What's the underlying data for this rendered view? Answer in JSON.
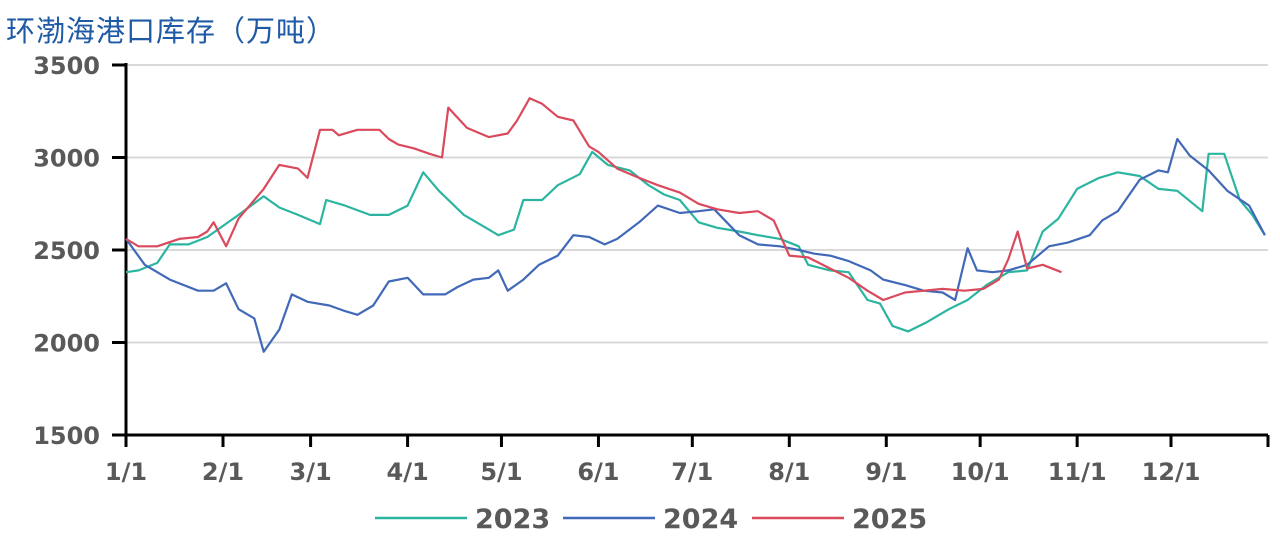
{
  "chart_data": {
    "type": "line",
    "title": "环渤海港口库存（万吨）",
    "xlabel": "",
    "ylabel": "",
    "ylim": [
      1500,
      3500
    ],
    "yticks": [
      "1500",
      "2000",
      "2500",
      "3000",
      "3500"
    ],
    "xticks": [
      {
        "label": "1/1",
        "date": "01-01"
      },
      {
        "label": "2/1",
        "date": "02-01"
      },
      {
        "label": "3/1",
        "date": "03-01"
      },
      {
        "label": "4/1",
        "date": "04-01"
      },
      {
        "label": "5/1",
        "date": "05-01"
      },
      {
        "label": "6/1",
        "date": "06-01"
      },
      {
        "label": "7/1",
        "date": "07-01"
      },
      {
        "label": "8/1",
        "date": "08-01"
      },
      {
        "label": "9/1",
        "date": "09-01"
      },
      {
        "label": "10/1",
        "date": "10-01"
      },
      {
        "label": "11/1",
        "date": "11-01"
      },
      {
        "label": "12/1",
        "date": "12-01"
      }
    ],
    "grid": true,
    "legend": "bottom",
    "series": [
      {
        "name": "2023",
        "color": "#2bb5a0",
        "points": [
          [
            "01-01",
            2380
          ],
          [
            "01-05",
            2390
          ],
          [
            "01-11",
            2430
          ],
          [
            "01-15",
            2530
          ],
          [
            "01-21",
            2530
          ],
          [
            "01-27",
            2570
          ],
          [
            "02-06",
            2690
          ],
          [
            "02-14",
            2790
          ],
          [
            "02-19",
            2730
          ],
          [
            "02-25",
            2690
          ],
          [
            "03-04",
            2640
          ],
          [
            "03-06",
            2770
          ],
          [
            "03-12",
            2740
          ],
          [
            "03-20",
            2690
          ],
          [
            "03-26",
            2690
          ],
          [
            "04-01",
            2740
          ],
          [
            "04-06",
            2920
          ],
          [
            "04-11",
            2820
          ],
          [
            "04-19",
            2690
          ],
          [
            "04-27",
            2610
          ],
          [
            "04-30",
            2580
          ],
          [
            "05-05",
            2610
          ],
          [
            "05-08",
            2770
          ],
          [
            "05-14",
            2770
          ],
          [
            "05-19",
            2850
          ],
          [
            "05-26",
            2910
          ],
          [
            "05-30",
            3030
          ],
          [
            "06-04",
            2960
          ],
          [
            "06-11",
            2930
          ],
          [
            "06-17",
            2850
          ],
          [
            "06-22",
            2800
          ],
          [
            "06-27",
            2770
          ],
          [
            "07-03",
            2650
          ],
          [
            "07-09",
            2620
          ],
          [
            "07-16",
            2600
          ],
          [
            "07-22",
            2580
          ],
          [
            "07-29",
            2560
          ],
          [
            "08-04",
            2520
          ],
          [
            "08-07",
            2420
          ],
          [
            "08-14",
            2390
          ],
          [
            "08-20",
            2380
          ],
          [
            "08-26",
            2230
          ],
          [
            "08-30",
            2210
          ],
          [
            "09-03",
            2090
          ],
          [
            "09-08",
            2060
          ],
          [
            "09-14",
            2110
          ],
          [
            "09-21",
            2180
          ],
          [
            "09-27",
            2230
          ],
          [
            "10-03",
            2310
          ],
          [
            "10-10",
            2380
          ],
          [
            "10-16",
            2390
          ],
          [
            "10-21",
            2600
          ],
          [
            "10-26",
            2670
          ],
          [
            "11-01",
            2830
          ],
          [
            "11-08",
            2890
          ],
          [
            "11-14",
            2920
          ],
          [
            "11-21",
            2900
          ],
          [
            "11-27",
            2830
          ],
          [
            "12-03",
            2820
          ],
          [
            "12-11",
            2710
          ],
          [
            "12-13",
            3020
          ],
          [
            "12-18",
            3020
          ],
          [
            "12-23",
            2770
          ],
          [
            "12-27",
            2690
          ],
          [
            "12-31",
            2580
          ]
        ]
      },
      {
        "name": "2024",
        "color": "#4169b8",
        "points": [
          [
            "01-01",
            2560
          ],
          [
            "01-07",
            2420
          ],
          [
            "01-15",
            2340
          ],
          [
            "01-24",
            2280
          ],
          [
            "01-29",
            2280
          ],
          [
            "02-02",
            2320
          ],
          [
            "02-06",
            2180
          ],
          [
            "02-11",
            2130
          ],
          [
            "02-14",
            1950
          ],
          [
            "02-19",
            2070
          ],
          [
            "02-23",
            2260
          ],
          [
            "02-28",
            2220
          ],
          [
            "03-07",
            2200
          ],
          [
            "03-12",
            2170
          ],
          [
            "03-16",
            2150
          ],
          [
            "03-21",
            2200
          ],
          [
            "03-26",
            2330
          ],
          [
            "04-01",
            2350
          ],
          [
            "04-06",
            2260
          ],
          [
            "04-13",
            2260
          ],
          [
            "04-17",
            2300
          ],
          [
            "04-22",
            2340
          ],
          [
            "04-27",
            2350
          ],
          [
            "04-30",
            2390
          ],
          [
            "05-03",
            2280
          ],
          [
            "05-08",
            2340
          ],
          [
            "05-13",
            2420
          ],
          [
            "05-19",
            2470
          ],
          [
            "05-24",
            2580
          ],
          [
            "05-29",
            2570
          ],
          [
            "06-03",
            2530
          ],
          [
            "06-07",
            2560
          ],
          [
            "06-14",
            2650
          ],
          [
            "06-20",
            2740
          ],
          [
            "06-27",
            2700
          ],
          [
            "07-03",
            2710
          ],
          [
            "07-08",
            2720
          ],
          [
            "07-16",
            2580
          ],
          [
            "07-22",
            2530
          ],
          [
            "07-29",
            2520
          ],
          [
            "08-04",
            2500
          ],
          [
            "08-09",
            2480
          ],
          [
            "08-14",
            2470
          ],
          [
            "08-20",
            2440
          ],
          [
            "08-27",
            2390
          ],
          [
            "08-31",
            2340
          ],
          [
            "09-07",
            2310
          ],
          [
            "09-13",
            2280
          ],
          [
            "09-19",
            2270
          ],
          [
            "09-23",
            2230
          ],
          [
            "09-27",
            2510
          ],
          [
            "09-30",
            2390
          ],
          [
            "10-05",
            2380
          ],
          [
            "10-10",
            2390
          ],
          [
            "10-16",
            2420
          ],
          [
            "10-23",
            2520
          ],
          [
            "10-29",
            2540
          ],
          [
            "11-05",
            2580
          ],
          [
            "11-09",
            2660
          ],
          [
            "11-14",
            2710
          ],
          [
            "11-21",
            2880
          ],
          [
            "11-27",
            2930
          ],
          [
            "11-30",
            2920
          ],
          [
            "12-03",
            3100
          ],
          [
            "12-07",
            3010
          ],
          [
            "12-13",
            2930
          ],
          [
            "12-19",
            2820
          ],
          [
            "12-26",
            2740
          ],
          [
            "12-31",
            2580
          ]
        ]
      },
      {
        "name": "2025",
        "color": "#d94a5c",
        "points": [
          [
            "01-01",
            2560
          ],
          [
            "01-05",
            2520
          ],
          [
            "01-11",
            2520
          ],
          [
            "01-18",
            2560
          ],
          [
            "01-24",
            2570
          ],
          [
            "01-27",
            2600
          ],
          [
            "01-29",
            2650
          ],
          [
            "02-02",
            2520
          ],
          [
            "02-06",
            2670
          ],
          [
            "02-14",
            2830
          ],
          [
            "02-19",
            2960
          ],
          [
            "02-25",
            2940
          ],
          [
            "02-28",
            2890
          ],
          [
            "03-04",
            3150
          ],
          [
            "03-08",
            3150
          ],
          [
            "03-10",
            3120
          ],
          [
            "03-16",
            3150
          ],
          [
            "03-23",
            3150
          ],
          [
            "03-26",
            3100
          ],
          [
            "03-29",
            3070
          ],
          [
            "04-03",
            3050
          ],
          [
            "04-08",
            3020
          ],
          [
            "04-12",
            3000
          ],
          [
            "04-14",
            3270
          ],
          [
            "04-20",
            3160
          ],
          [
            "04-27",
            3110
          ],
          [
            "05-03",
            3130
          ],
          [
            "05-06",
            3200
          ],
          [
            "05-10",
            3320
          ],
          [
            "05-14",
            3290
          ],
          [
            "05-19",
            3220
          ],
          [
            "05-24",
            3200
          ],
          [
            "05-29",
            3060
          ],
          [
            "06-01",
            3030
          ],
          [
            "06-07",
            2940
          ],
          [
            "06-14",
            2890
          ],
          [
            "06-20",
            2850
          ],
          [
            "06-27",
            2810
          ],
          [
            "07-03",
            2750
          ],
          [
            "07-09",
            2720
          ],
          [
            "07-16",
            2700
          ],
          [
            "07-22",
            2710
          ],
          [
            "07-27",
            2660
          ],
          [
            "08-01",
            2470
          ],
          [
            "08-07",
            2460
          ],
          [
            "08-14",
            2400
          ],
          [
            "08-20",
            2350
          ],
          [
            "08-26",
            2280
          ],
          [
            "08-31",
            2230
          ],
          [
            "09-07",
            2270
          ],
          [
            "09-13",
            2280
          ],
          [
            "09-19",
            2290
          ],
          [
            "09-26",
            2280
          ],
          [
            "10-02",
            2290
          ],
          [
            "10-07",
            2340
          ],
          [
            "10-10",
            2450
          ],
          [
            "10-13",
            2600
          ],
          [
            "10-16",
            2400
          ],
          [
            "10-21",
            2420
          ],
          [
            "10-27",
            2380
          ]
        ]
      }
    ]
  }
}
